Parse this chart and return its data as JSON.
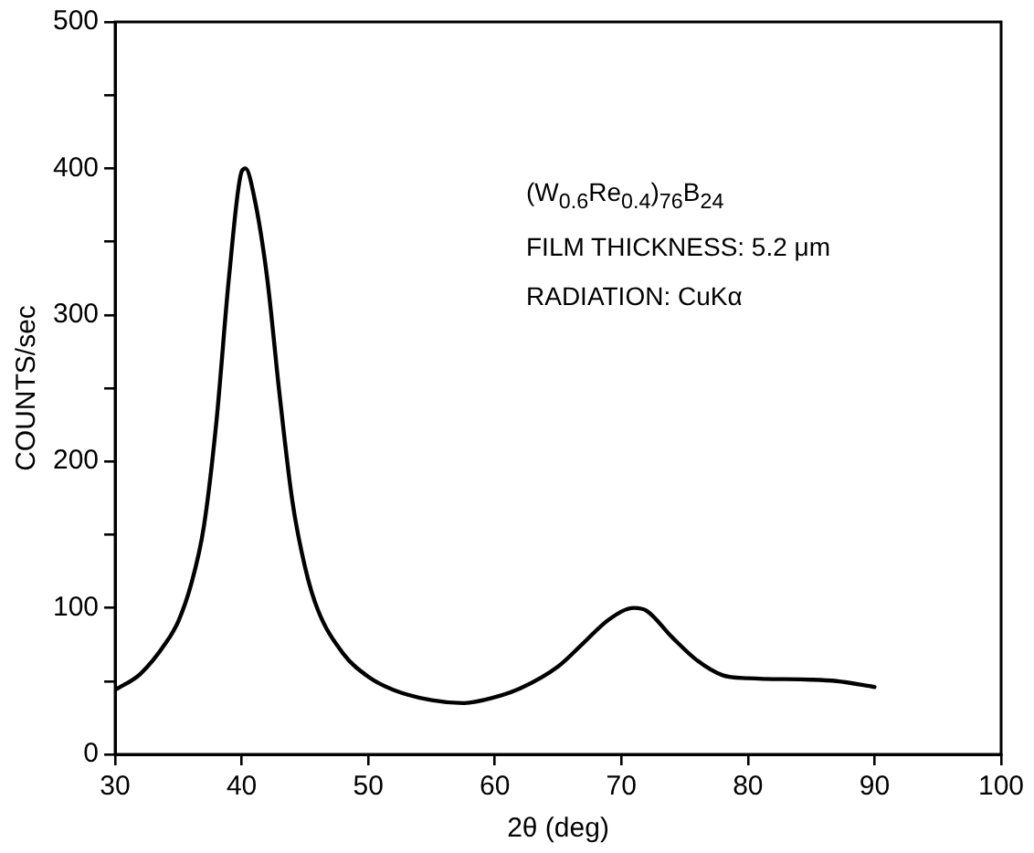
{
  "chart_data": {
    "type": "line",
    "xlabel": "2θ (deg)",
    "ylabel": "COUNTS/sec",
    "annotations": [
      "(W$_{0.6}$Re$_{0.4}$)$_{76}$B$_{24}$",
      "FILM THICKNESS: 5.2 μm",
      "RADIATION: CuKα"
    ],
    "series": [
      {
        "color": "#000000",
        "x": [
          30,
          32,
          34,
          35,
          36,
          37,
          38,
          39,
          40,
          40.3,
          41,
          42,
          43,
          44,
          45,
          46,
          48,
          50,
          52,
          55,
          57.5,
          60,
          62,
          65,
          67,
          69,
          71,
          72,
          74,
          76,
          78,
          80,
          85,
          87,
          90
        ],
        "values": [
          44,
          55,
          76,
          91,
          116,
          155,
          227,
          326,
          398,
          400,
          380,
          326,
          245,
          173,
          128,
          99,
          69,
          53,
          44,
          37,
          35,
          39,
          45,
          60,
          76,
          92,
          100,
          98,
          80,
          64,
          54,
          52,
          51,
          50,
          46
        ]
      }
    ],
    "xlim": [
      30,
      100
    ],
    "xticks": [
      30,
      40,
      50,
      60,
      70,
      80,
      90,
      100
    ],
    "ylim": [
      0,
      500
    ],
    "yticks": [
      0,
      {
        "value": 50,
        "label": null
      },
      100,
      {
        "value": 150,
        "label": null
      },
      200,
      {
        "value": 250,
        "label": null
      },
      300,
      {
        "value": 350,
        "label": null
      },
      400,
      {
        "value": 450,
        "label": null
      },
      500
    ],
    "grid": false,
    "legend": false,
    "marker": "none",
    "line_style": "solid"
  }
}
